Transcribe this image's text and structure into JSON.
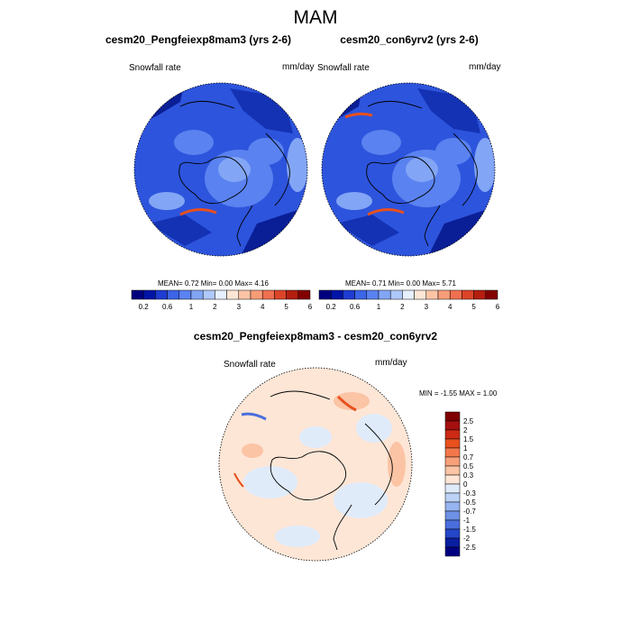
{
  "page_title": "MAM",
  "chart_data": [
    {
      "type": "heatmap",
      "projection": "polar-stereographic",
      "title": "cesm20_Pengfeiexp8mam3 (yrs 2-6)",
      "left_label": "Snowfall rate",
      "units": "mm/day",
      "stats": {
        "mean": "0.72",
        "min": "0.00",
        "max": "4.16"
      },
      "stats_text": "MEAN=   0.72  Min=   0.00  Max=   4.16",
      "colorbar_levels": [
        "0.2",
        "0.4",
        "0.6",
        "0.8",
        "1",
        "1.5",
        "2",
        "2.5",
        "3",
        "3.5",
        "4",
        "4.5",
        "5",
        "5.5",
        "6"
      ],
      "colorbar_labels": [
        "0.2",
        "0.6",
        "1",
        "2",
        "3",
        "4",
        "5",
        "6"
      ],
      "colorbar_colors": [
        "#00007f",
        "#0014a6",
        "#1e3cd1",
        "#3c64e6",
        "#5a82f0",
        "#82a5f5",
        "#afc8fa",
        "#e6f0ff",
        "#fde6d6",
        "#fbc4a5",
        "#f79d78",
        "#ef7050",
        "#dc4428",
        "#b41e0f",
        "#820000"
      ]
    },
    {
      "type": "heatmap",
      "projection": "polar-stereographic",
      "title": "cesm20_con6yrv2 (yrs 2-6)",
      "left_label": "Snowfall rate",
      "units": "mm/day",
      "stats": {
        "mean": "0.71",
        "min": "0.00",
        "max": "5.71"
      },
      "stats_text": "MEAN=   0.71  Min=   0.00  Max=   5.71",
      "colorbar_levels": [
        "0.2",
        "0.4",
        "0.6",
        "0.8",
        "1",
        "1.5",
        "2",
        "2.5",
        "3",
        "3.5",
        "4",
        "4.5",
        "5",
        "5.5",
        "6"
      ],
      "colorbar_labels": [
        "0.2",
        "0.6",
        "1",
        "2",
        "3",
        "4",
        "5",
        "6"
      ],
      "colorbar_colors": [
        "#00007f",
        "#0014a6",
        "#1e3cd1",
        "#3c64e6",
        "#5a82f0",
        "#82a5f5",
        "#afc8fa",
        "#e6f0ff",
        "#fde6d6",
        "#fbc4a5",
        "#f79d78",
        "#ef7050",
        "#dc4428",
        "#b41e0f",
        "#820000"
      ]
    },
    {
      "type": "heatmap",
      "projection": "polar-stereographic",
      "title": "cesm20_Pengfeiexp8mam3 - cesm20_con6yrv2",
      "left_label": "Snowfall rate",
      "units": "mm/day",
      "stats": {
        "min": "-1.55",
        "max": "1.00"
      },
      "stats_text": "MIN =  -1.55 MAX =   1.00",
      "colorbar_labels": [
        "2.5",
        "2",
        "1.5",
        "1",
        "0.7",
        "0.5",
        "0.3",
        "0",
        "-0.3",
        "-0.5",
        "-0.7",
        "-1",
        "-1.5",
        "-2",
        "-2.5"
      ],
      "colorbar_colors": [
        "#7f0000",
        "#a50f0f",
        "#cc2a14",
        "#e8501e",
        "#f2784b",
        "#f7a07a",
        "#fbc4a5",
        "#fde6d6",
        "#e0ebfa",
        "#bcd2f7",
        "#96b4f0",
        "#6e91e6",
        "#4a6edc",
        "#2446c8",
        "#0a1ea0",
        "#000080"
      ]
    }
  ]
}
